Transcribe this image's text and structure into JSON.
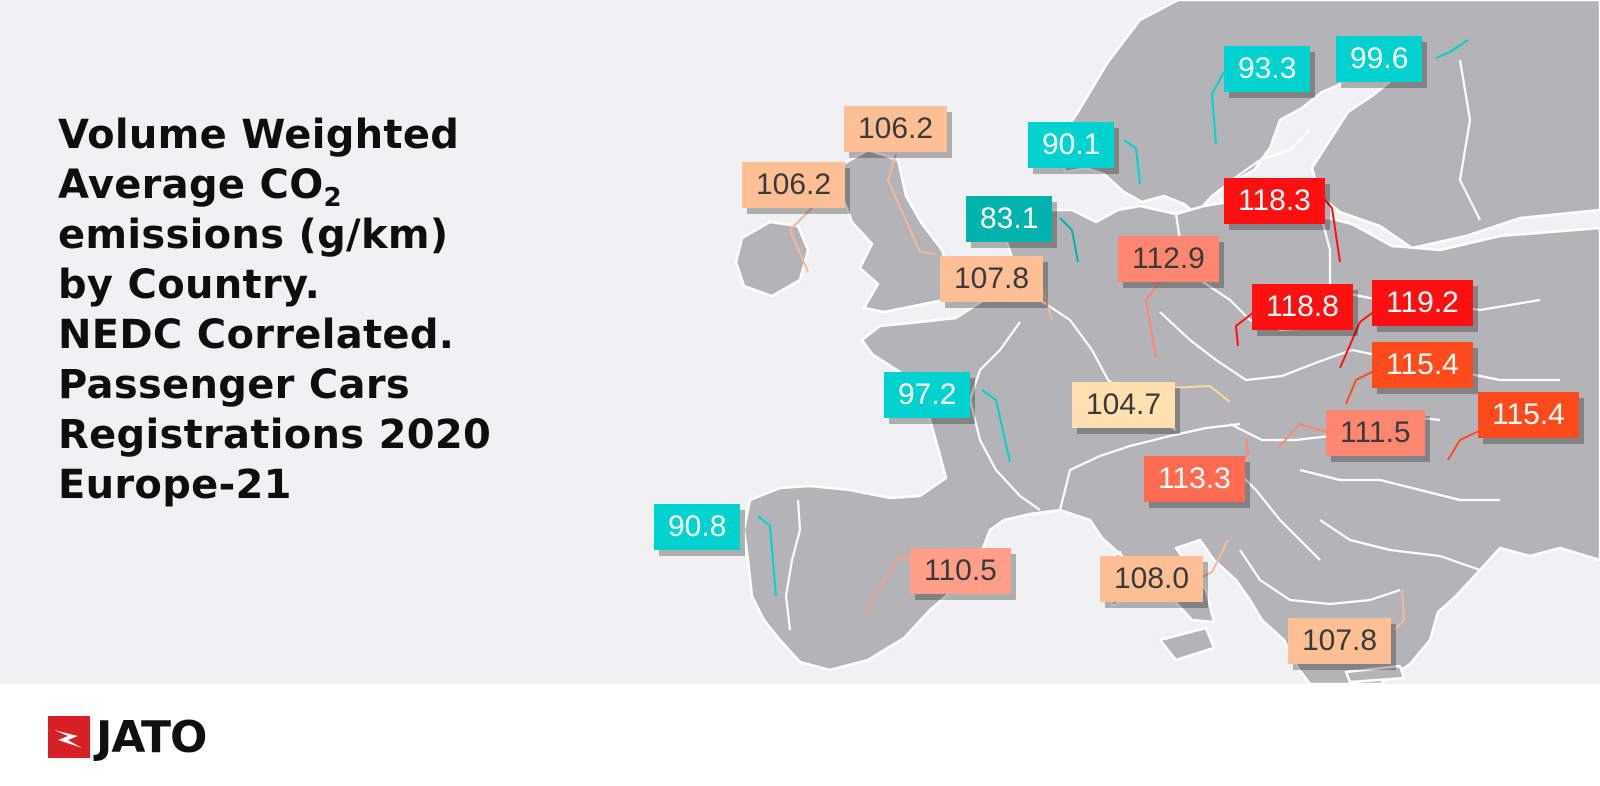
{
  "title": {
    "line1": "Volume Weighted",
    "line2_pre": "Average CO",
    "line2_sub": "2",
    "line3": "emissions (g/km)",
    "line4": "by Country.",
    "line5": "NEDC Correlated.",
    "line6": "Passenger Cars",
    "line7": "Registrations 2020",
    "line8": "Europe-21"
  },
  "logo": {
    "text": "JATO",
    "color": "#d81f26"
  },
  "colors": {
    "background": "#f1f1f3",
    "land": "#b4b4b8",
    "borders": "#ffffff",
    "low": "#00d3cf",
    "very_low": "#00b3ad",
    "mid": "#ffbf95",
    "mid_pale": "#ffe0b0",
    "upper_mid": "#ff8670",
    "high": "#ff4a1c",
    "highest": "#ff0f0f"
  },
  "regions": [
    {
      "id": "ireland",
      "value": "106.2"
    },
    {
      "id": "uk",
      "value": "106.2"
    },
    {
      "id": "netherlands",
      "value": "83.1"
    },
    {
      "id": "belgium",
      "value": "107.8"
    },
    {
      "id": "denmark",
      "value": "90.1"
    },
    {
      "id": "sweden",
      "value": "93.3"
    },
    {
      "id": "finland",
      "value": "99.6"
    },
    {
      "id": "poland",
      "value": "118.3"
    },
    {
      "id": "germany",
      "value": "112.9"
    },
    {
      "id": "czechia",
      "value": "118.8"
    },
    {
      "id": "slovakia",
      "value": "119.2"
    },
    {
      "id": "hungary",
      "value": "115.4"
    },
    {
      "id": "romania",
      "value": "115.4"
    },
    {
      "id": "croatia",
      "value": "111.5"
    },
    {
      "id": "austria",
      "value": "104.7"
    },
    {
      "id": "slovenia",
      "value": "113.3"
    },
    {
      "id": "france",
      "value": "97.2"
    },
    {
      "id": "portugal",
      "value": "90.8"
    },
    {
      "id": "spain",
      "value": "110.5"
    },
    {
      "id": "italy",
      "value": "108.0"
    },
    {
      "id": "greece",
      "value": "107.8"
    }
  ]
}
